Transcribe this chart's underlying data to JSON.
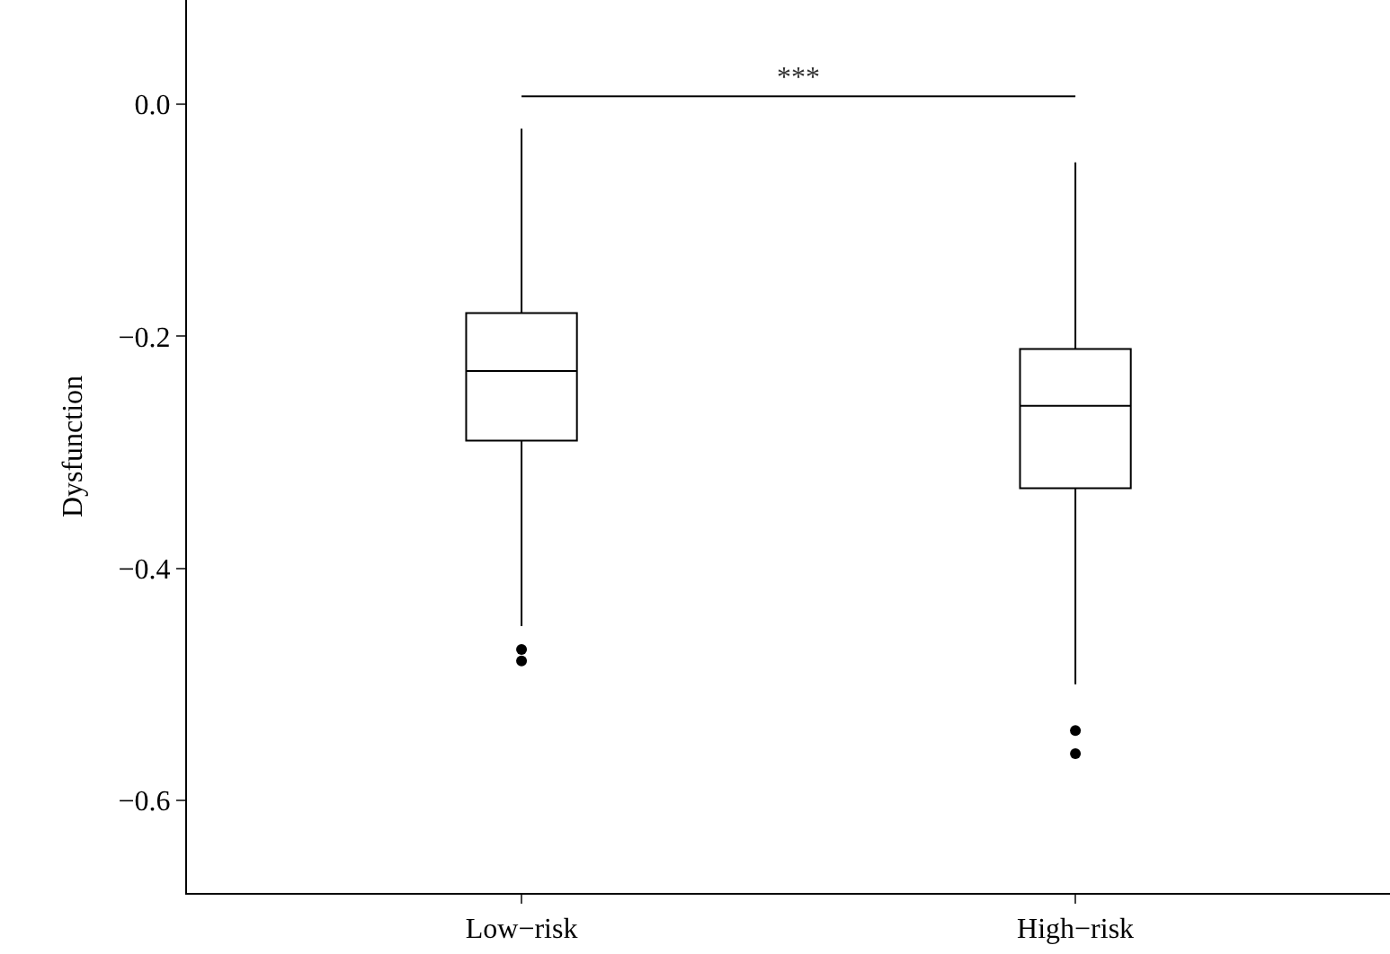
{
  "chart_data": {
    "type": "box",
    "ylabel": "Dysfunction",
    "categories": [
      "Low−risk",
      "High−risk"
    ],
    "ylim": [
      -0.68,
      0.09
    ],
    "yticks": [
      {
        "value": 0,
        "label": "0.0"
      },
      {
        "value": -0.2,
        "label": "−0.2"
      },
      {
        "value": -0.4,
        "label": "−0.4"
      },
      {
        "value": -0.6,
        "label": "−0.6"
      }
    ],
    "series": [
      {
        "color": "#ffffff",
        "boxes": [
          {
            "low": -0.45,
            "q1": -0.29,
            "median": -0.23,
            "q3": -0.18,
            "high": -0.021,
            "outliers": [
              -0.47,
              -0.48
            ]
          },
          {
            "low": -0.5,
            "q1": -0.331,
            "median": -0.26,
            "q3": -0.211,
            "high": -0.05,
            "outliers": [
              -0.54,
              -0.56
            ]
          }
        ]
      }
    ],
    "annotations": [
      "***"
    ]
  }
}
